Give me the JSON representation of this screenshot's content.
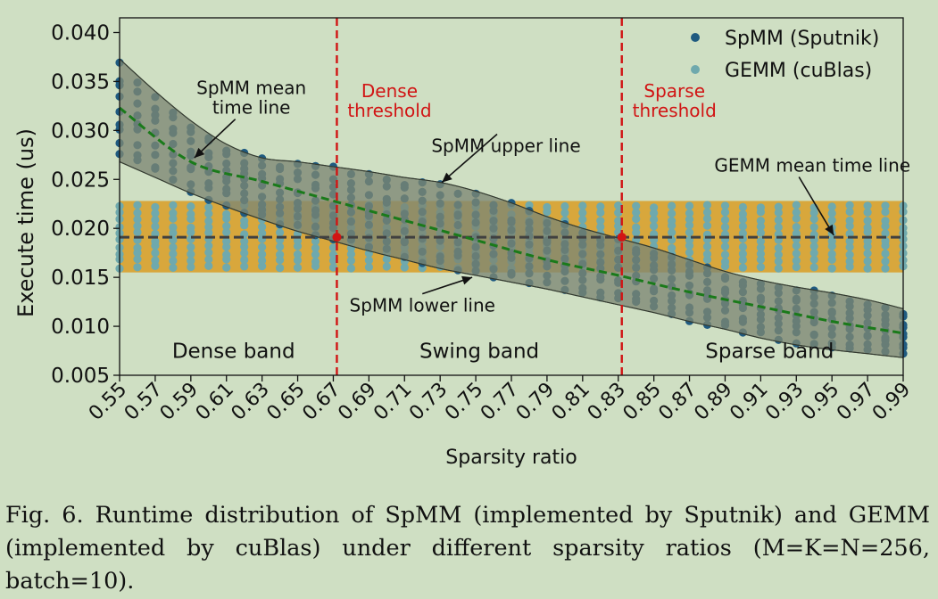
{
  "chart_data": {
    "type": "scatter",
    "ylabel": "Execute time (us)",
    "xlabel": "Sparsity ratio",
    "xlim": [
      0.55,
      0.99
    ],
    "ylim": [
      0.005,
      0.0415
    ],
    "yticks": [
      "0.005",
      "0.010",
      "0.015",
      "0.020",
      "0.025",
      "0.030",
      "0.035",
      "0.040"
    ],
    "xticks": [
      "0.55",
      "0.57",
      "0.59",
      "0.61",
      "0.63",
      "0.65",
      "0.67",
      "0.69",
      "0.71",
      "0.73",
      "0.75",
      "0.77",
      "0.79",
      "0.81",
      "0.83",
      "0.85",
      "0.87",
      "0.89",
      "0.91",
      "0.93",
      "0.95",
      "0.97",
      "0.99"
    ],
    "grid": false,
    "legend": {
      "position": "top-right",
      "entries": [
        {
          "label": "SpMM (Sputnik)",
          "color": "#1f5a80"
        },
        {
          "label": "GEMM (cuBlas)",
          "color": "#6fa9ad"
        }
      ]
    },
    "colors": {
      "spmm_points": "#1f5a80",
      "gemm_points": "#6fa9ad",
      "gemm_band": "#d8a73c",
      "spmm_band": "#7c8773",
      "spmm_mean_line": "#1a7a1a",
      "gemm_mean_line": "#404040",
      "threshold": "#d11414"
    },
    "gemm_band": {
      "y_low": 0.0155,
      "y_high": 0.0228
    },
    "gemm_mean": 0.0191,
    "spmm_mean_line": {
      "x": [
        0.55,
        0.59,
        0.63,
        0.67,
        0.71,
        0.75,
        0.79,
        0.83,
        0.87,
        0.91,
        0.95,
        0.99
      ],
      "y": [
        0.0323,
        0.0268,
        0.0248,
        0.0228,
        0.0208,
        0.0188,
        0.0168,
        0.0152,
        0.0135,
        0.012,
        0.0105,
        0.0093
      ]
    },
    "spmm_upper_line": {
      "x": [
        0.55,
        0.57,
        0.59,
        0.61,
        0.63,
        0.65,
        0.67,
        0.69,
        0.71,
        0.73,
        0.75,
        0.77,
        0.79,
        0.81,
        0.83,
        0.85,
        0.87,
        0.89,
        0.91,
        0.93,
        0.95,
        0.97,
        0.99
      ],
      "y": [
        0.0373,
        0.034,
        0.031,
        0.0286,
        0.0272,
        0.0268,
        0.0263,
        0.0258,
        0.0252,
        0.0247,
        0.0238,
        0.0226,
        0.0212,
        0.02,
        0.019,
        0.018,
        0.0168,
        0.0156,
        0.0147,
        0.014,
        0.0134,
        0.0127,
        0.0118
      ]
    },
    "spmm_lower_line": {
      "x": [
        0.55,
        0.57,
        0.59,
        0.61,
        0.63,
        0.65,
        0.67,
        0.69,
        0.71,
        0.73,
        0.75,
        0.77,
        0.79,
        0.81,
        0.83,
        0.85,
        0.87,
        0.89,
        0.91,
        0.93,
        0.95,
        0.97,
        0.99
      ],
      "y": [
        0.0268,
        0.0252,
        0.0236,
        0.0222,
        0.0209,
        0.0197,
        0.0187,
        0.0177,
        0.0168,
        0.0159,
        0.0152,
        0.0145,
        0.0138,
        0.013,
        0.0122,
        0.0114,
        0.0105,
        0.0097,
        0.0088,
        0.0081,
        0.0076,
        0.0072,
        0.0068
      ]
    },
    "thresholds": [
      {
        "x": 0.672,
        "label_line1": "Dense",
        "label_line2": "threshold"
      },
      {
        "x": 0.832,
        "label_line1": "Sparse",
        "label_line2": "threshold"
      }
    ],
    "band_labels": [
      {
        "text": "Dense band",
        "x": 0.614,
        "y": 0.0075
      },
      {
        "text": "Swing band",
        "x": 0.752,
        "y": 0.0075
      },
      {
        "text": "Sparse band",
        "x": 0.915,
        "y": 0.0075
      }
    ],
    "annotations": [
      {
        "line1": "SpMM mean",
        "line2": "time line",
        "text_x": 0.624,
        "text_y": 0.0337,
        "arrow_x": 0.592,
        "arrow_y": 0.0272
      },
      {
        "line1": "SpMM upper line",
        "line2": "",
        "text_x": 0.767,
        "text_y": 0.0278,
        "arrow_x": 0.731,
        "arrow_y": 0.0247
      },
      {
        "line1": "SpMM lower line",
        "line2": "",
        "text_x": 0.72,
        "text_y": 0.0115,
        "arrow_x": 0.748,
        "arrow_y": 0.015
      },
      {
        "line1": "GEMM mean time line",
        "line2": "",
        "text_x": 0.939,
        "text_y": 0.0258,
        "arrow_x": 0.951,
        "arrow_y": 0.0193
      }
    ]
  },
  "caption": {
    "text": "Fig. 6.  Runtime distribution of SpMM (implemented by Sputnik) and GEMM (implemented by cuBlas) under different sparsity ratios (M=K=N=256, batch=10)."
  }
}
